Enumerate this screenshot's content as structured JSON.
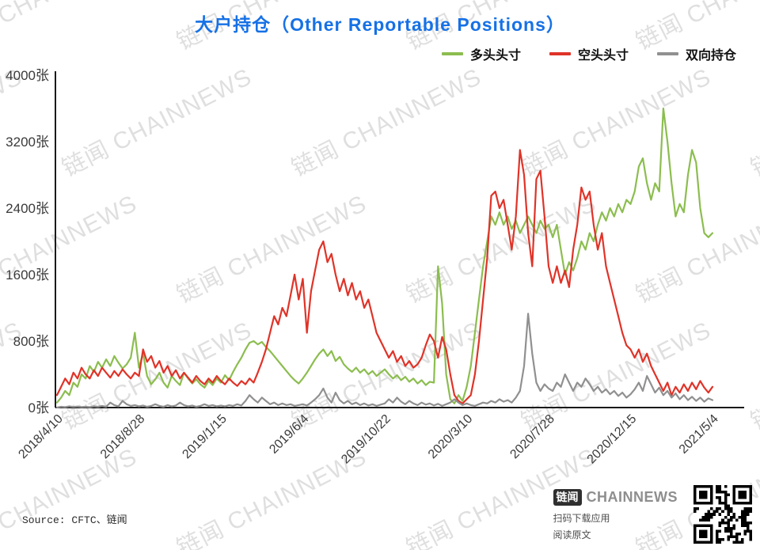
{
  "title": "大户持仓（Other Reportable Positions）",
  "colors": {
    "title": "#1671e6",
    "long": "#8cbd4f",
    "short": "#e03328",
    "both": "#909090",
    "axis": "#1a1a1a",
    "tick_text": "#3a3a3a",
    "watermark": "#c8c8c8"
  },
  "legend": [
    {
      "label": "多头头寸",
      "color_key": "long",
      "series_name": "long-positions"
    },
    {
      "label": "空头头寸",
      "color_key": "short",
      "series_name": "short-positions"
    },
    {
      "label": "双向持仓",
      "color_key": "both",
      "series_name": "both-positions"
    }
  ],
  "watermark": {
    "text": "链闻 CHAINNEWS"
  },
  "footer": {
    "source": "Source: CFTC、链闻",
    "brand_badge": "链闻",
    "brand_name": "CHAINNEWS",
    "scan_text": "扫码下载应用",
    "read_text": "阅读原文"
  },
  "chart_data": {
    "type": "line",
    "title": "大户持仓（Other Reportable Positions）",
    "xlabel": "",
    "ylabel": "",
    "ylim": [
      0,
      4000
    ],
    "grid": false,
    "legend_position": "top-right",
    "x_unit": "week",
    "y_tick_labels": [
      "0张",
      "800张",
      "1600张",
      "2400张",
      "3200张",
      "4000张"
    ],
    "y_tick_values": [
      0,
      800,
      1600,
      2400,
      3200,
      4000
    ],
    "x_tick_labels": [
      "2018/4/10",
      "2018/8/28",
      "2019/1/15",
      "2019/6/4",
      "2019/10/22",
      "2020/3/10",
      "2020/7/28",
      "2020/12/15",
      "2021/5/4"
    ],
    "x_tick_indices": [
      0,
      20,
      40,
      60,
      80,
      100,
      120,
      140,
      160
    ],
    "series": [
      {
        "name": "多头头寸",
        "key": "long-positions",
        "color": "#8cbd4f",
        "values": [
          60,
          120,
          200,
          150,
          300,
          250,
          400,
          350,
          500,
          430,
          550,
          480,
          580,
          500,
          620,
          540,
          470,
          520,
          600,
          900,
          480,
          650,
          380,
          280,
          340,
          420,
          300,
          240,
          380,
          320,
          270,
          420,
          350,
          290,
          340,
          280,
          240,
          320,
          270,
          350,
          300,
          390,
          330,
          430,
          520,
          600,
          700,
          780,
          800,
          760,
          790,
          730,
          680,
          620,
          560,
          500,
          440,
          380,
          330,
          290,
          350,
          420,
          500,
          580,
          650,
          700,
          620,
          680,
          560,
          610,
          520,
          470,
          430,
          480,
          420,
          460,
          400,
          440,
          380,
          420,
          460,
          400,
          350,
          390,
          330,
          370,
          310,
          350,
          290,
          330,
          270,
          310,
          300,
          1700,
          1250,
          400,
          100,
          50,
          150,
          80,
          250,
          500,
          900,
          1300,
          1700,
          2000,
          2300,
          2200,
          2350,
          2200,
          2300,
          2150,
          2250,
          2100,
          2200,
          2300,
          2200,
          2100,
          2250,
          2150,
          2200,
          2050,
          2200,
          1900,
          1600,
          1750,
          1650,
          1800,
          2000,
          1900,
          2100,
          2000,
          2200,
          2350,
          2250,
          2400,
          2300,
          2450,
          2350,
          2500,
          2450,
          2600,
          2900,
          3000,
          2700,
          2500,
          2700,
          2600,
          3600,
          3200,
          2700,
          2300,
          2450,
          2350,
          2800,
          3100,
          2950,
          2400,
          2100,
          2050,
          2100
        ]
      },
      {
        "name": "空头头寸",
        "key": "short-positions",
        "color": "#e03328",
        "values": [
          150,
          250,
          350,
          280,
          420,
          350,
          480,
          400,
          350,
          450,
          380,
          480,
          420,
          360,
          440,
          380,
          460,
          400,
          350,
          420,
          380,
          700,
          550,
          620,
          480,
          560,
          420,
          500,
          380,
          450,
          350,
          420,
          360,
          300,
          380,
          320,
          280,
          350,
          300,
          380,
          320,
          280,
          350,
          300,
          260,
          320,
          280,
          350,
          300,
          420,
          550,
          700,
          900,
          1100,
          1000,
          1200,
          1100,
          1350,
          1600,
          1300,
          1550,
          900,
          1400,
          1650,
          1900,
          2000,
          1750,
          1850,
          1600,
          1400,
          1550,
          1350,
          1500,
          1300,
          1400,
          1200,
          1300,
          1100,
          900,
          800,
          700,
          600,
          680,
          550,
          620,
          500,
          560,
          480,
          520,
          600,
          750,
          880,
          800,
          600,
          850,
          700,
          400,
          150,
          80,
          50,
          100,
          150,
          400,
          800,
          1300,
          1800,
          2550,
          2600,
          2400,
          2500,
          2200,
          1900,
          2300,
          3100,
          2800,
          2100,
          1700,
          2750,
          2850,
          2300,
          1700,
          1500,
          1700,
          1500,
          1650,
          1450,
          1900,
          2200,
          2650,
          2500,
          2600,
          2200,
          1900,
          2100,
          1700,
          1500,
          1300,
          1100,
          900,
          750,
          700,
          600,
          700,
          550,
          650,
          500,
          400,
          300,
          200,
          300,
          150,
          250,
          180,
          280,
          200,
          300,
          220,
          320,
          240,
          180,
          250
        ]
      },
      {
        "name": "双向持仓",
        "key": "both-positions",
        "color": "#909090",
        "values": [
          0,
          10,
          5,
          15,
          8,
          12,
          6,
          10,
          5,
          15,
          10,
          20,
          10,
          60,
          30,
          15,
          80,
          40,
          20,
          30,
          15,
          25,
          10,
          20,
          40,
          20,
          10,
          30,
          15,
          25,
          60,
          30,
          15,
          25,
          10,
          20,
          40,
          20,
          30,
          15,
          25,
          15,
          30,
          20,
          40,
          25,
          80,
          150,
          100,
          60,
          120,
          80,
          40,
          60,
          30,
          50,
          30,
          40,
          20,
          30,
          40,
          25,
          60,
          100,
          150,
          230,
          120,
          60,
          180,
          90,
          50,
          80,
          40,
          60,
          30,
          50,
          25,
          40,
          20,
          35,
          50,
          100,
          60,
          120,
          70,
          40,
          80,
          50,
          30,
          60,
          35,
          50,
          25,
          45,
          20,
          40,
          60,
          100,
          60,
          30,
          50,
          30,
          20,
          40,
          60,
          50,
          80,
          60,
          100,
          70,
          90,
          60,
          120,
          200,
          500,
          1130,
          650,
          300,
          200,
          280,
          230,
          200,
          300,
          250,
          400,
          300,
          200,
          300,
          250,
          350,
          280,
          200,
          250,
          180,
          220,
          160,
          200,
          140,
          180,
          120,
          160,
          220,
          300,
          200,
          380,
          280,
          180,
          240,
          150,
          200,
          120,
          170,
          100,
          150,
          90,
          130,
          80,
          120,
          70,
          110,
          90
        ]
      }
    ]
  }
}
